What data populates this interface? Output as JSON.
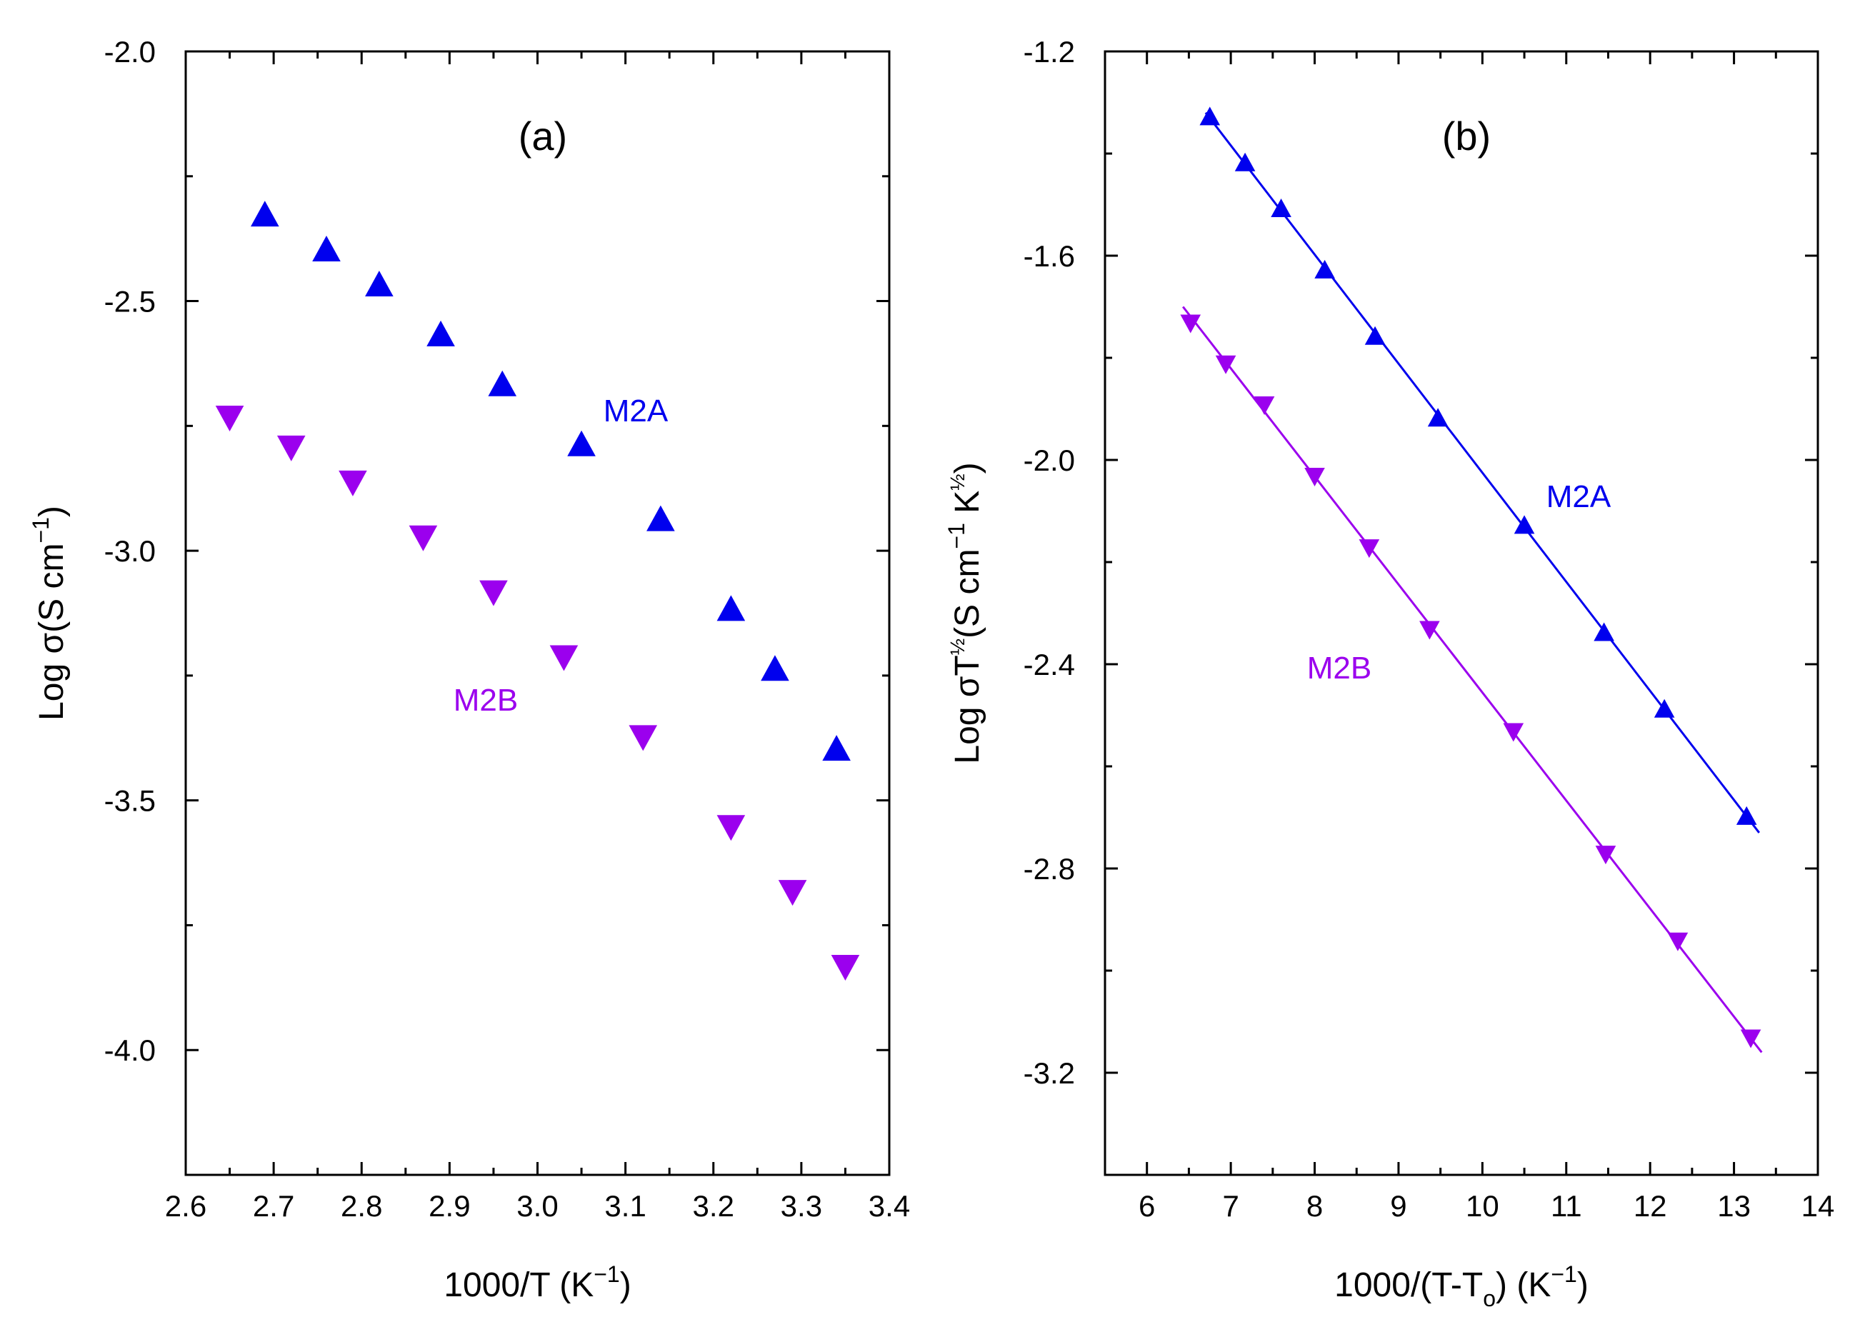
{
  "chart_data": [
    {
      "type": "scatter",
      "panel_label": "(a)",
      "xlabel": "1000/T (K",
      "xlabel_sup": "−1",
      "xlabel_end": ")",
      "ylabel": "Log σ(S cm",
      "ylabel_sup": "−1",
      "ylabel_end": ")",
      "xlim": [
        2.6,
        3.4
      ],
      "ylim": [
        -4.25,
        -2.0
      ],
      "xticks": [
        2.6,
        2.7,
        2.8,
        2.9,
        3.0,
        3.1,
        3.2,
        3.3,
        3.4
      ],
      "xtick_labels": [
        "2.6",
        "2.7",
        "2.8",
        "2.9",
        "3.0",
        "3.1",
        "3.2",
        "3.3",
        "3.4"
      ],
      "yticks": [
        -2.0,
        -2.5,
        -3.0,
        -3.5,
        -4.0
      ],
      "ytick_labels": [
        "-2.0",
        "-2.5",
        "-3.0",
        "-3.5",
        "-4.0"
      ],
      "series": [
        {
          "name": "M2A",
          "label": "M2A",
          "color": "#0000ee",
          "marker": "triangle-up",
          "fit_line": false,
          "x": [
            2.69,
            2.76,
            2.82,
            2.89,
            2.96,
            3.05,
            3.14,
            3.22,
            3.27,
            3.34
          ],
          "y": [
            -2.33,
            -2.4,
            -2.47,
            -2.57,
            -2.67,
            -2.79,
            -2.94,
            -3.12,
            -3.24,
            -3.4
          ]
        },
        {
          "name": "M2B",
          "label": "M2B",
          "color": "#9b00ee",
          "marker": "triangle-down",
          "fit_line": false,
          "x": [
            2.65,
            2.72,
            2.79,
            2.87,
            2.95,
            3.03,
            3.12,
            3.22,
            3.29,
            3.35
          ],
          "y": [
            -2.73,
            -2.79,
            -2.86,
            -2.97,
            -3.08,
            -3.21,
            -3.37,
            -3.55,
            -3.68,
            -3.83
          ]
        }
      ]
    },
    {
      "type": "scatter",
      "panel_label": "(b)",
      "xlabel": "1000/(T-T",
      "xlabel_sub": "o",
      "xlabel_end": ") (K",
      "xlabel_sup": "−1",
      "xlabel_end2": ")",
      "ylabel": "Log σT",
      "ylabel_sup": "½",
      "ylabel_mid": "(S cm",
      "ylabel_sup2": "−1",
      "ylabel_mid2": " K",
      "ylabel_sup3": "½",
      "ylabel_end": ")",
      "xlim": [
        5.5,
        14
      ],
      "ylim": [
        -3.4,
        -1.2
      ],
      "xticks": [
        6,
        7,
        8,
        9,
        10,
        11,
        12,
        13,
        14
      ],
      "xtick_labels": [
        "6",
        "7",
        "8",
        "9",
        "10",
        "11",
        "12",
        "13",
        "14"
      ],
      "yticks": [
        -1.2,
        -1.6,
        -2.0,
        -2.4,
        -2.8,
        -3.2
      ],
      "ytick_labels": [
        "-1.2",
        "-1.6",
        "-2.0",
        "-2.4",
        "-2.8",
        "-3.2"
      ],
      "series": [
        {
          "name": "M2A",
          "label": "M2A",
          "color": "#0000ee",
          "marker": "triangle-up",
          "fit_line": true,
          "fit_x": [
            6.7,
            13.3
          ],
          "fit_y": [
            -1.32,
            -2.73
          ],
          "x": [
            6.75,
            7.17,
            7.6,
            8.12,
            8.72,
            9.47,
            10.5,
            11.45,
            12.17,
            13.15
          ],
          "y": [
            -1.33,
            -1.42,
            -1.51,
            -1.63,
            -1.76,
            -1.92,
            -2.13,
            -2.34,
            -2.49,
            -2.7
          ]
        },
        {
          "name": "M2B",
          "label": "M2B",
          "color": "#9b00ee",
          "marker": "triangle-down",
          "fit_line": true,
          "fit_x": [
            6.43,
            13.33
          ],
          "fit_y": [
            -1.7,
            -3.16
          ],
          "x": [
            6.52,
            6.94,
            7.4,
            8.0,
            8.65,
            9.37,
            10.37,
            11.47,
            12.33,
            13.2
          ],
          "y": [
            -1.73,
            -1.81,
            -1.89,
            -2.03,
            -2.17,
            -2.33,
            -2.53,
            -2.77,
            -2.94,
            -3.13
          ]
        }
      ]
    }
  ]
}
